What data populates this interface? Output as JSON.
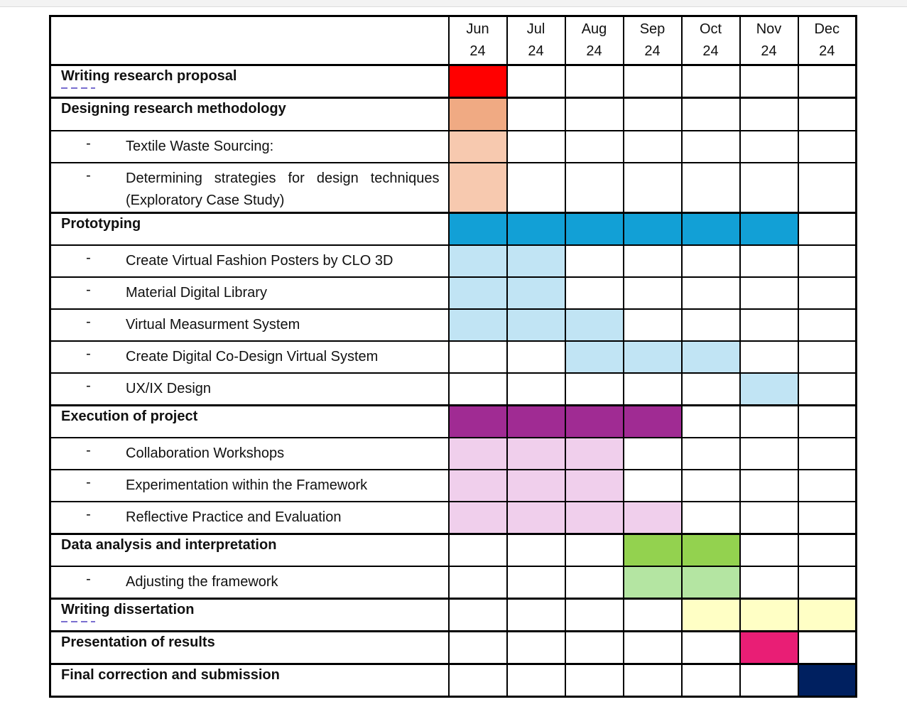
{
  "months": [
    {
      "month": "Jun",
      "year": "24"
    },
    {
      "month": "Jul",
      "year": "24"
    },
    {
      "month": "Aug",
      "year": "24"
    },
    {
      "month": "Sep",
      "year": "24"
    },
    {
      "month": "Oct",
      "year": "24"
    },
    {
      "month": "Nov",
      "year": "24"
    },
    {
      "month": "Dec",
      "year": "24"
    }
  ],
  "tasks": [
    {
      "label": "Writing research proposal",
      "level": "main",
      "spell": "Writing",
      "color": "#ff0000",
      "active": [
        1,
        0,
        0,
        0,
        0,
        0,
        0
      ]
    },
    {
      "label": "Designing research methodology",
      "level": "main",
      "color": "#f0aa83",
      "active": [
        1,
        0,
        0,
        0,
        0,
        0,
        0
      ]
    },
    {
      "label": "Textile Waste Sourcing:",
      "level": "sub",
      "color": "#f7c9af",
      "active": [
        1,
        0,
        0,
        0,
        0,
        0,
        0
      ]
    },
    {
      "label": "Determining strategies for design techniques (Exploratory Case Study)",
      "level": "sub",
      "color": "#f7c9af",
      "active": [
        1,
        0,
        0,
        0,
        0,
        0,
        0
      ],
      "tall": true
    },
    {
      "label": "Prototyping",
      "level": "main",
      "color": "#12a0d6",
      "active": [
        1,
        1,
        1,
        1,
        1,
        1,
        0
      ]
    },
    {
      "label": "Create Virtual Fashion Posters by CLO 3D",
      "level": "sub",
      "color": "#c1e4f4",
      "active": [
        1,
        1,
        0,
        0,
        0,
        0,
        0
      ]
    },
    {
      "label": "Material Digital Library",
      "level": "sub",
      "color": "#c1e4f4",
      "active": [
        1,
        1,
        0,
        0,
        0,
        0,
        0
      ]
    },
    {
      "label": "Virtual Measurment System",
      "level": "sub",
      "color": "#c1e4f4",
      "active": [
        1,
        1,
        1,
        0,
        0,
        0,
        0
      ]
    },
    {
      "label": "Create Digital Co-Design Virtual System",
      "level": "sub",
      "color": "#c1e4f4",
      "active": [
        0,
        0,
        1,
        1,
        1,
        0,
        0
      ]
    },
    {
      "label": "UX/IX Design",
      "level": "sub",
      "color": "#c1e4f4",
      "active": [
        0,
        0,
        0,
        0,
        0,
        1,
        0
      ]
    },
    {
      "label": "Execution of project",
      "level": "main",
      "color": "#a02b93",
      "active": [
        1,
        1,
        1,
        1,
        0,
        0,
        0
      ]
    },
    {
      "label": "Collaboration Workshops",
      "level": "sub",
      "color": "#f0cfec",
      "active": [
        1,
        1,
        1,
        0,
        0,
        0,
        0
      ]
    },
    {
      "label": "Experimentation within the Framework",
      "level": "sub",
      "color": "#f0cfec",
      "active": [
        1,
        1,
        1,
        0,
        0,
        0,
        0
      ]
    },
    {
      "label": "Reflective Practice and Evaluation",
      "level": "sub",
      "color": "#f0cfec",
      "active": [
        1,
        1,
        1,
        1,
        0,
        0,
        0
      ]
    },
    {
      "label": "Data analysis and interpretation",
      "level": "main",
      "color": "#93d24f",
      "active": [
        0,
        0,
        0,
        1,
        1,
        0,
        0
      ]
    },
    {
      "label": "Adjusting the framework",
      "level": "sub",
      "color": "#b4e5a2",
      "active": [
        0,
        0,
        0,
        1,
        1,
        0,
        0
      ]
    },
    {
      "label": "Writing dissertation",
      "level": "main",
      "spell": "Writing",
      "color": "#ffffc5",
      "active": [
        0,
        0,
        0,
        0,
        1,
        1,
        1
      ]
    },
    {
      "label": "Presentation of results",
      "level": "main",
      "color": "#e91e75",
      "active": [
        0,
        0,
        0,
        0,
        0,
        1,
        0
      ]
    },
    {
      "label": "Final correction and submission",
      "level": "main",
      "color": "#002060",
      "active": [
        0,
        0,
        0,
        0,
        0,
        0,
        1
      ]
    }
  ],
  "sub_bullet": "-"
}
